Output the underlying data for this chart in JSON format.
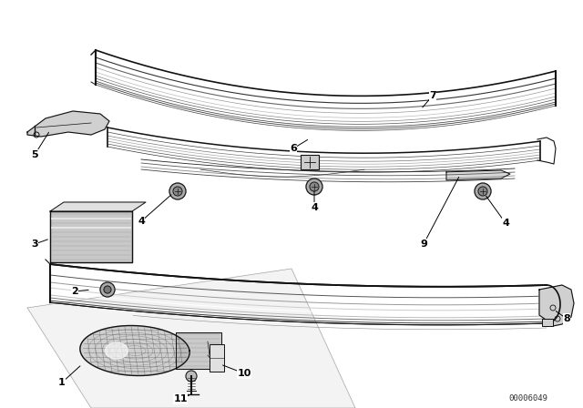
{
  "background_color": "#ffffff",
  "line_color": "#111111",
  "watermark": "00006049",
  "figsize": [
    6.4,
    4.48
  ],
  "dpi": 100,
  "fig_bg": "#f0f0f0"
}
